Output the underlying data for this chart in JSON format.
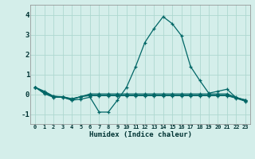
{
  "xlabel": "Humidex (Indice chaleur)",
  "background_color": "#d4eeea",
  "grid_color": "#aed8d0",
  "line_color": "#006666",
  "xlim": [
    -0.5,
    23.5
  ],
  "ylim": [
    -1.5,
    4.5
  ],
  "yticks": [
    -1,
    0,
    1,
    2,
    3,
    4
  ],
  "x": [
    0,
    1,
    2,
    3,
    4,
    5,
    6,
    7,
    8,
    9,
    10,
    11,
    12,
    13,
    14,
    15,
    16,
    17,
    18,
    19,
    20,
    21,
    22,
    23
  ],
  "series1": [
    0.35,
    0.15,
    -0.1,
    -0.15,
    -0.3,
    -0.25,
    -0.15,
    -0.9,
    -0.9,
    -0.3,
    0.35,
    1.4,
    2.6,
    3.3,
    3.9,
    3.55,
    2.95,
    1.4,
    0.7,
    0.05,
    0.15,
    0.25,
    -0.18,
    -0.28
  ],
  "series2": [
    0.35,
    0.12,
    -0.1,
    -0.12,
    -0.22,
    -0.12,
    0.02,
    0.02,
    0.02,
    0.02,
    0.02,
    0.02,
    0.02,
    0.02,
    0.02,
    0.02,
    0.02,
    0.02,
    0.02,
    0.02,
    0.02,
    0.02,
    -0.15,
    -0.3
  ],
  "series3": [
    0.35,
    0.08,
    -0.12,
    -0.12,
    -0.24,
    -0.12,
    -0.02,
    -0.02,
    -0.02,
    -0.02,
    -0.02,
    -0.02,
    -0.02,
    -0.02,
    -0.02,
    -0.02,
    -0.02,
    -0.02,
    -0.02,
    -0.02,
    -0.02,
    -0.02,
    -0.17,
    -0.32
  ],
  "series4": [
    0.35,
    0.05,
    -0.14,
    -0.14,
    -0.26,
    -0.12,
    -0.05,
    -0.05,
    -0.05,
    -0.05,
    -0.05,
    -0.05,
    -0.05,
    -0.05,
    -0.05,
    -0.05,
    -0.05,
    -0.05,
    -0.05,
    -0.05,
    -0.05,
    -0.05,
    -0.19,
    -0.34
  ],
  "series5": [
    0.35,
    0.02,
    -0.16,
    -0.16,
    -0.28,
    -0.12,
    -0.08,
    -0.08,
    -0.08,
    -0.08,
    -0.08,
    -0.08,
    -0.08,
    -0.08,
    -0.08,
    -0.08,
    -0.08,
    -0.08,
    -0.08,
    -0.08,
    -0.08,
    -0.08,
    -0.21,
    -0.36
  ]
}
